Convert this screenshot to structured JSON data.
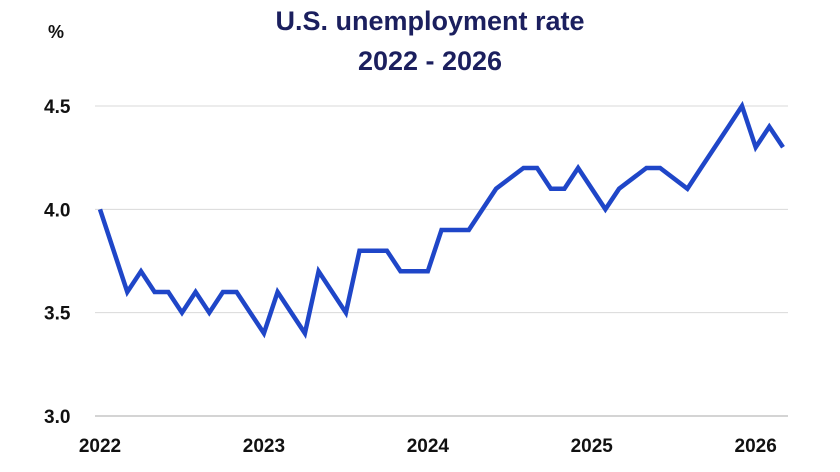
{
  "chart_data": {
    "type": "line",
    "title_line1": "U.S. unemployment rate",
    "title_line2": "2022 - 2026",
    "ylabel": "%",
    "xlabel": "",
    "ylim": [
      3.0,
      4.5
    ],
    "xlim": [
      "2022-01",
      "2026-03"
    ],
    "yticks": [
      "3.0",
      "3.5",
      "4.0",
      "4.5"
    ],
    "xticks": [
      "2022",
      "2023",
      "2024",
      "2025",
      "2026"
    ],
    "grid": true,
    "colors": {
      "line": "#1f46c8",
      "grid": "#d9d9d9",
      "title": "#1b1f5e"
    },
    "series": [
      {
        "x": [
          "2022-01",
          "2022-03",
          "2022-04",
          "2022-05",
          "2022-06",
          "2022-07",
          "2022-08",
          "2022-09",
          "2022-10",
          "2022-11",
          "2022-12",
          "2023-01",
          "2023-02",
          "2023-04",
          "2023-05",
          "2023-07",
          "2023-08",
          "2023-10",
          "2023-11",
          "2024-01",
          "2024-02",
          "2024-04",
          "2024-05",
          "2024-06",
          "2024-08",
          "2024-09",
          "2024-10",
          "2024-11",
          "2024-12",
          "2025-02",
          "2025-03",
          "2025-05",
          "2025-06",
          "2025-08",
          "2025-09",
          "2025-11",
          "2025-12",
          "2026-01",
          "2026-02",
          "2026-03"
        ],
        "values": [
          4.0,
          3.6,
          3.7,
          3.6,
          3.6,
          3.5,
          3.6,
          3.5,
          3.6,
          3.6,
          3.5,
          3.4,
          3.6,
          3.4,
          3.7,
          3.5,
          3.8,
          3.8,
          3.7,
          3.7,
          3.9,
          3.9,
          4.0,
          4.1,
          4.2,
          4.2,
          4.1,
          4.1,
          4.2,
          4.0,
          4.1,
          4.2,
          4.2,
          4.1,
          4.2,
          4.4,
          4.5,
          4.3,
          4.4,
          4.3
        ]
      }
    ]
  }
}
